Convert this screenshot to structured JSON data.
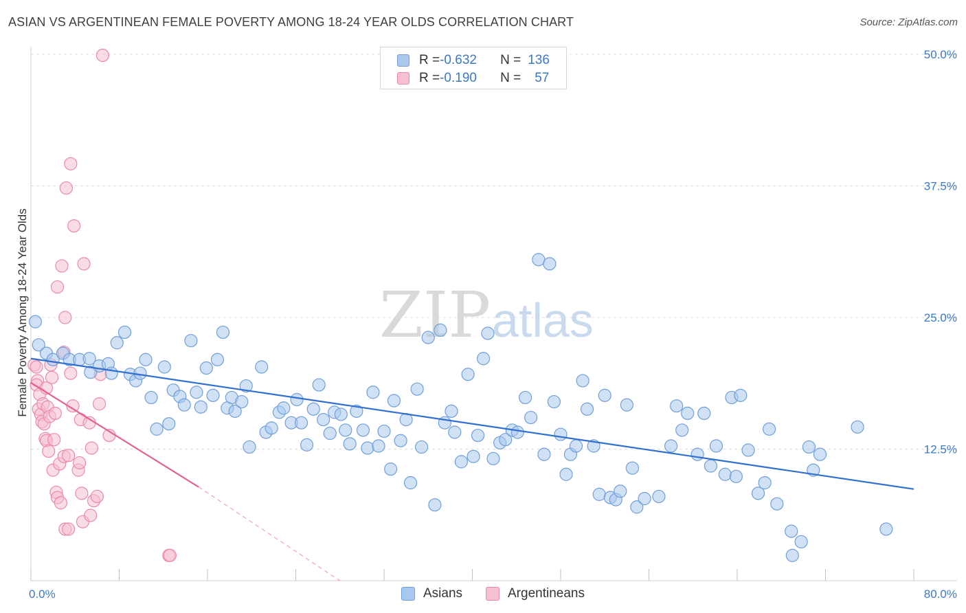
{
  "title": "ASIAN VS ARGENTINEAN FEMALE POVERTY AMONG 18-24 YEAR OLDS CORRELATION CHART",
  "source": "Source: ZipAtlas.com",
  "watermark": {
    "zip": "ZIP",
    "atlas": "atlas"
  },
  "legend": {
    "rows": [
      {
        "r_label": "R = ",
        "r_value": "-0.632",
        "n_label": "N = ",
        "n_value": "136",
        "color": "#a9c8ee",
        "border": "#6f9fd8"
      },
      {
        "r_label": "R = ",
        "r_value": "-0.190",
        "n_label": "N = ",
        "n_value": "57",
        "color": "#f6c0d0",
        "border": "#e88aa8"
      }
    ]
  },
  "bottom_legend": [
    {
      "label": "Asians",
      "color": "#a9c8ee",
      "border": "#6f9fd8"
    },
    {
      "label": "Argentineans",
      "color": "#f6c0d0",
      "border": "#e88aa8"
    }
  ],
  "chart_data": {
    "type": "scatter",
    "title": "ASIAN VS ARGENTINEAN FEMALE POVERTY AMONG 18-24 YEAR OLDS CORRELATION CHART",
    "xlabel": "",
    "ylabel": "Female Poverty Among 18-24 Year Olds",
    "xlim": [
      0,
      80
    ],
    "ylim": [
      0,
      50
    ],
    "x_tick_labels": [
      "0.0%",
      "80.0%"
    ],
    "y_ticks": [
      12.5,
      25.0,
      37.5,
      50.0
    ],
    "y_tick_labels": [
      "12.5%",
      "25.0%",
      "37.5%",
      "50.0%"
    ],
    "grid": "horizontal dashed",
    "series": [
      {
        "name": "Asians",
        "color": "#a9c8ee",
        "stroke": "#6f9fd8",
        "trend": {
          "x": [
            0,
            80
          ],
          "y": [
            21.1,
            8.7
          ],
          "color": "#2f6fcf"
        },
        "points": [
          [
            0.4,
            24.6
          ],
          [
            0.7,
            22.4
          ],
          [
            1.4,
            21.6
          ],
          [
            2.0,
            21.0
          ],
          [
            2.9,
            21.6
          ],
          [
            3.5,
            21.0
          ],
          [
            4.4,
            21.0
          ],
          [
            5.3,
            21.1
          ],
          [
            5.4,
            19.8
          ],
          [
            6.2,
            20.4
          ],
          [
            7.0,
            20.6
          ],
          [
            7.3,
            19.7
          ],
          [
            7.8,
            22.6
          ],
          [
            8.5,
            23.6
          ],
          [
            9.0,
            19.6
          ],
          [
            9.5,
            19.0
          ],
          [
            9.9,
            19.7
          ],
          [
            10.4,
            21.0
          ],
          [
            10.9,
            17.4
          ],
          [
            11.4,
            14.4
          ],
          [
            12.1,
            20.3
          ],
          [
            12.5,
            14.9
          ],
          [
            12.9,
            18.1
          ],
          [
            13.5,
            17.5
          ],
          [
            13.9,
            16.7
          ],
          [
            14.5,
            22.8
          ],
          [
            15.0,
            17.9
          ],
          [
            15.4,
            16.5
          ],
          [
            15.9,
            20.2
          ],
          [
            16.5,
            17.6
          ],
          [
            16.9,
            21.0
          ],
          [
            17.4,
            23.6
          ],
          [
            17.8,
            16.4
          ],
          [
            18.2,
            17.4
          ],
          [
            18.5,
            16.1
          ],
          [
            19.1,
            17.0
          ],
          [
            19.5,
            18.5
          ],
          [
            19.8,
            12.7
          ],
          [
            20.9,
            20.3
          ],
          [
            21.3,
            14.1
          ],
          [
            21.8,
            14.5
          ],
          [
            22.5,
            16.0
          ],
          [
            22.9,
            16.4
          ],
          [
            23.6,
            15.0
          ],
          [
            24.1,
            17.2
          ],
          [
            24.5,
            15.0
          ],
          [
            25.0,
            12.9
          ],
          [
            25.6,
            16.3
          ],
          [
            26.1,
            18.6
          ],
          [
            26.5,
            15.3
          ],
          [
            27.1,
            14.0
          ],
          [
            27.5,
            16.0
          ],
          [
            28.1,
            15.8
          ],
          [
            28.5,
            14.3
          ],
          [
            28.9,
            13.0
          ],
          [
            29.5,
            16.1
          ],
          [
            30.1,
            14.3
          ],
          [
            30.5,
            12.6
          ],
          [
            31.0,
            17.9
          ],
          [
            31.5,
            12.8
          ],
          [
            32.0,
            14.2
          ],
          [
            32.6,
            10.6
          ],
          [
            32.9,
            17.1
          ],
          [
            33.5,
            13.3
          ],
          [
            34.0,
            15.3
          ],
          [
            34.4,
            9.3
          ],
          [
            35.0,
            18.2
          ],
          [
            35.4,
            12.7
          ],
          [
            36.0,
            23.1
          ],
          [
            36.6,
            7.2
          ],
          [
            37.1,
            23.8
          ],
          [
            37.5,
            15.0
          ],
          [
            38.1,
            16.1
          ],
          [
            38.4,
            14.1
          ],
          [
            39.0,
            11.3
          ],
          [
            39.6,
            19.6
          ],
          [
            40.1,
            11.8
          ],
          [
            40.5,
            13.8
          ],
          [
            41.0,
            21.1
          ],
          [
            41.4,
            23.5
          ],
          [
            41.9,
            11.6
          ],
          [
            42.5,
            13.1
          ],
          [
            43.0,
            13.4
          ],
          [
            43.6,
            14.3
          ],
          [
            44.1,
            14.1
          ],
          [
            44.8,
            17.4
          ],
          [
            45.3,
            15.5
          ],
          [
            46.0,
            30.5
          ],
          [
            46.5,
            12.0
          ],
          [
            47.0,
            30.1
          ],
          [
            47.4,
            17.0
          ],
          [
            48.0,
            13.9
          ],
          [
            48.5,
            10.1
          ],
          [
            48.9,
            12.0
          ],
          [
            49.4,
            12.8
          ],
          [
            50.0,
            19.0
          ],
          [
            50.4,
            16.3
          ],
          [
            51.0,
            12.8
          ],
          [
            51.5,
            8.2
          ],
          [
            52.0,
            17.6
          ],
          [
            52.5,
            7.9
          ],
          [
            53.0,
            7.7
          ],
          [
            53.4,
            8.5
          ],
          [
            54.0,
            16.7
          ],
          [
            54.5,
            10.7
          ],
          [
            54.9,
            7.0
          ],
          [
            55.6,
            7.8
          ],
          [
            56.9,
            8.0
          ],
          [
            58.0,
            12.8
          ],
          [
            58.5,
            16.6
          ],
          [
            59.0,
            14.3
          ],
          [
            59.5,
            15.9
          ],
          [
            60.4,
            12.0
          ],
          [
            61.0,
            15.9
          ],
          [
            61.6,
            10.9
          ],
          [
            62.1,
            12.8
          ],
          [
            62.9,
            10.1
          ],
          [
            63.5,
            17.4
          ],
          [
            63.9,
            9.9
          ],
          [
            64.3,
            17.6
          ],
          [
            65.0,
            12.4
          ],
          [
            65.9,
            8.3
          ],
          [
            66.5,
            9.3
          ],
          [
            66.9,
            14.4
          ],
          [
            67.6,
            7.3
          ],
          [
            68.9,
            4.7
          ],
          [
            69.0,
            2.4
          ],
          [
            69.8,
            3.7
          ],
          [
            70.5,
            12.7
          ],
          [
            70.9,
            10.5
          ],
          [
            71.5,
            12.0
          ],
          [
            74.9,
            14.6
          ],
          [
            77.5,
            4.9
          ]
        ]
      },
      {
        "name": "Argentineans",
        "color": "#f6c0d0",
        "stroke": "#e88aa8",
        "trend": {
          "x": [
            0,
            15.2
          ],
          "y": [
            18.8,
            8.9
          ],
          "dash_to": [
            28.0,
            0
          ],
          "color": "#e3628e"
        },
        "points": [
          [
            0.3,
            20.5
          ],
          [
            0.5,
            20.3
          ],
          [
            0.6,
            19.0
          ],
          [
            0.5,
            18.6
          ],
          [
            0.8,
            17.7
          ],
          [
            0.7,
            16.3
          ],
          [
            0.9,
            15.8
          ],
          [
            1.0,
            15.1
          ],
          [
            1.1,
            16.8
          ],
          [
            1.2,
            14.9
          ],
          [
            1.3,
            13.5
          ],
          [
            1.4,
            13.3
          ],
          [
            1.4,
            18.3
          ],
          [
            1.5,
            16.5
          ],
          [
            1.6,
            12.3
          ],
          [
            1.7,
            15.6
          ],
          [
            1.8,
            20.5
          ],
          [
            1.9,
            19.3
          ],
          [
            2.0,
            10.5
          ],
          [
            2.1,
            13.4
          ],
          [
            2.2,
            15.9
          ],
          [
            2.3,
            8.4
          ],
          [
            2.4,
            7.9
          ],
          [
            2.4,
            27.9
          ],
          [
            2.6,
            11.1
          ],
          [
            2.7,
            7.4
          ],
          [
            2.8,
            29.9
          ],
          [
            3.0,
            21.7
          ],
          [
            3.0,
            11.8
          ],
          [
            3.1,
            25.0
          ],
          [
            3.1,
            4.9
          ],
          [
            3.2,
            37.3
          ],
          [
            3.4,
            11.9
          ],
          [
            3.4,
            4.9
          ],
          [
            3.6,
            39.6
          ],
          [
            3.6,
            19.7
          ],
          [
            3.8,
            16.6
          ],
          [
            3.9,
            33.7
          ],
          [
            4.3,
            10.5
          ],
          [
            4.4,
            11.2
          ],
          [
            4.5,
            15.3
          ],
          [
            4.6,
            8.3
          ],
          [
            4.7,
            5.6
          ],
          [
            4.8,
            30.1
          ],
          [
            5.3,
            15.0
          ],
          [
            5.4,
            6.2
          ],
          [
            5.5,
            12.6
          ],
          [
            5.7,
            7.6
          ],
          [
            6.0,
            8.0
          ],
          [
            6.2,
            16.8
          ],
          [
            6.3,
            19.6
          ],
          [
            6.5,
            49.9
          ],
          [
            7.1,
            13.8
          ],
          [
            12.5,
            2.4
          ],
          [
            12.6,
            2.4
          ]
        ]
      }
    ]
  }
}
